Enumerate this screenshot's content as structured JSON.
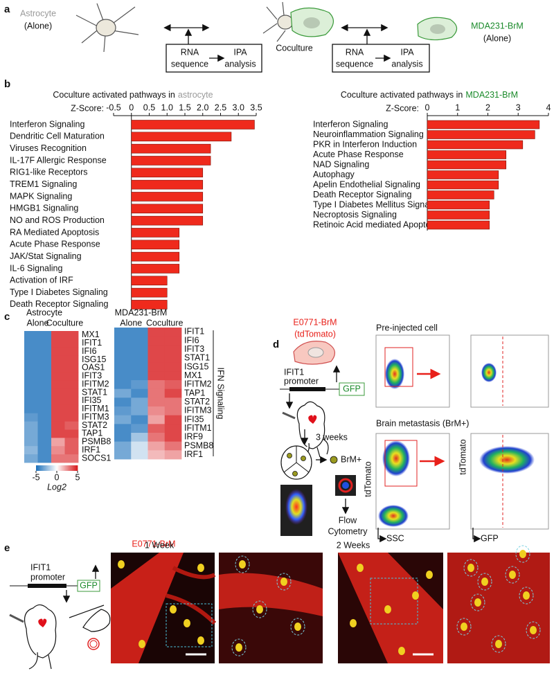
{
  "panel_a": {
    "label": "a",
    "astrocyte": [
      "Astrocyte",
      "(Alone)"
    ],
    "coculture": "Coculture",
    "tumor": [
      "MDA231-BrM",
      "(Alone)"
    ],
    "pipelines": [
      {
        "rna": [
          "RNA",
          "sequence"
        ],
        "ipa": [
          "IPA",
          "analysis"
        ]
      },
      {
        "rna": [
          "RNA",
          "sequence"
        ],
        "ipa": [
          "IPA",
          "analysis"
        ]
      }
    ]
  },
  "panel_b": {
    "label": "b"
  },
  "chart_data": [
    {
      "type": "bar",
      "orientation": "horizontal",
      "title": "Coculture activated pathways in",
      "title_highlight": "astrocyte",
      "title_highlight_color": "#9a9a9a",
      "axis_label": "Z-Score:",
      "categories": [
        "Interferon Signaling",
        "Dendritic Cell Maturation",
        "Viruses Recognition",
        "IL-17F Allergic Response",
        "RIG1-like Receptors",
        "TREM1 Signaling",
        "MAPK Signaling",
        "HMGB1 Signaling",
        "NO and ROS Production",
        "RA Mediated Apoptosis",
        "Acute Phase Response",
        "JAK/Stat Signaling",
        "IL-6 Signaling",
        "Activation of IRF",
        "Type I Diabetes Signaling",
        "Death Receptor Signaling"
      ],
      "values": [
        3.45,
        2.8,
        2.22,
        2.22,
        2.0,
        2.0,
        2.0,
        2.0,
        2.0,
        1.34,
        1.34,
        1.34,
        1.34,
        1.0,
        1.0,
        1.0
      ],
      "color": "#ef2a1c",
      "xlim": [
        -0.5,
        3.5
      ],
      "xticks": [
        -0.5,
        0,
        0.5,
        {
          "value": 1,
          "label": "1.0"
        },
        1.5,
        {
          "value": 2,
          "label": "2.0"
        },
        2.5,
        {
          "value": 3,
          "label": "3.0"
        },
        3.5
      ]
    },
    {
      "type": "bar",
      "orientation": "horizontal",
      "title": "Coculture activated pathways in",
      "title_highlight": "MDA231-BrM",
      "title_highlight_color": "#1a8a2a",
      "axis_label": "Z-Score:",
      "categories": [
        "Interferon Signaling",
        "Neuroinflammation Signaling",
        "PKR in Interferon Induction",
        "Acute Phase Response",
        "NAD Signaling",
        "Autophagy",
        "Apelin Endothelial Signaling",
        "Death Receptor Signaling",
        "Type I Diabetes Mellitus Signaling",
        "Necroptosis Signaling",
        "Retinoic Acid mediated Apoptosis"
      ],
      "values": [
        3.7,
        3.55,
        3.15,
        2.6,
        2.6,
        2.35,
        2.35,
        2.2,
        2.05,
        2.05,
        2.05
      ],
      "color": "#ef2a1c",
      "xlim": [
        0,
        4
      ],
      "xticks": [
        0,
        1,
        2,
        3,
        4
      ]
    },
    {
      "type": "heatmap",
      "title": "Astrocyte",
      "title_color": "#9a9a9a",
      "groups": [
        "Alone",
        "Coculture"
      ],
      "rows": [
        "MX1",
        "IFIT1",
        "IFI6",
        "ISG15",
        "OAS1",
        "IFIT3",
        "IFITM2",
        "STAT1",
        "IFI35",
        "IFITM1",
        "IFITM3",
        "STAT2",
        "TAP1",
        "PSMB8",
        "IRF1",
        "SOCS1"
      ],
      "values": [
        [
          -4,
          -4,
          4,
          4
        ],
        [
          -4,
          -4,
          4,
          4
        ],
        [
          -4,
          -4,
          4,
          4
        ],
        [
          -4,
          -4,
          4,
          4
        ],
        [
          -4,
          -4,
          4,
          4
        ],
        [
          -4,
          -4,
          4,
          4
        ],
        [
          -4,
          -4,
          4,
          4
        ],
        [
          -4,
          -4,
          4,
          4
        ],
        [
          -4,
          -4,
          4,
          4
        ],
        [
          -4,
          -4,
          4,
          4
        ],
        [
          -3.5,
          -4,
          4,
          4
        ],
        [
          -3,
          -4,
          4,
          3.5
        ],
        [
          -3,
          -4,
          4,
          4
        ],
        [
          -3,
          -4,
          2,
          3.5
        ],
        [
          -2.5,
          -4,
          2.5,
          3.5
        ],
        [
          -3,
          -4,
          3,
          3
        ]
      ],
      "zlim": [
        -5,
        5
      ],
      "colors": [
        "#1a6fba",
        "#ffffff",
        "#d7191c"
      ],
      "colorbar_ticks": [
        -5,
        0,
        5
      ],
      "colorbar_label": "Log2"
    },
    {
      "type": "heatmap",
      "title": "MDA231-BrM",
      "title_color": "#1a8a2a",
      "groups": [
        "Alone",
        "Coculture"
      ],
      "rows": [
        "IFIT1",
        "IFI6",
        "IFIT3",
        "STAT1",
        "ISG15",
        "MX1",
        "IFITM2",
        "TAP1",
        "STAT2",
        "IFITM3",
        "IFI35",
        "IFITM1",
        "IRF9",
        "PSMB8",
        "IRF1"
      ],
      "values": [
        [
          -4,
          -4,
          4,
          4
        ],
        [
          -4,
          -4,
          4,
          4
        ],
        [
          -4,
          -4,
          4,
          4
        ],
        [
          -4,
          -4,
          4,
          4
        ],
        [
          -4,
          -4,
          4,
          4
        ],
        [
          -4,
          -4,
          4,
          4
        ],
        [
          -4,
          -3.5,
          3,
          3.5
        ],
        [
          -3,
          -4,
          3,
          4
        ],
        [
          -4,
          -3,
          3,
          3
        ],
        [
          -3.5,
          -3,
          2.5,
          3
        ],
        [
          -3,
          -4,
          2,
          4
        ],
        [
          -4,
          -3.5,
          3.5,
          4
        ],
        [
          -4,
          -2,
          3,
          4
        ],
        [
          -3,
          -1,
          2,
          3
        ],
        [
          -3,
          -1,
          1.5,
          2
        ]
      ],
      "zlim": [
        -5,
        5
      ],
      "colors": [
        "#1a6fba",
        "#ffffff",
        "#d7191c"
      ],
      "row_group_label": "IFN Signaling"
    }
  ],
  "panel_c": {
    "label": "c"
  },
  "panel_d": {
    "label": "d",
    "cell": [
      "E0771-BrM",
      "(tdTomato)"
    ],
    "promoter": [
      "IFIT1",
      "promoter"
    ],
    "reporter": "GFP",
    "duration": "3 weeks",
    "positive": "BrM+",
    "method": [
      "Flow",
      "Cytometry"
    ],
    "plot_titles": [
      "Pre-injected cell",
      "Brain metastasis (BrM+)"
    ],
    "axes": {
      "y": "tdTomato",
      "x_left": "SSC",
      "x_right": "GFP"
    }
  },
  "panel_e": {
    "label": "e",
    "cell": "E0771-BrM",
    "promoter": [
      "IFIT1",
      "promoter"
    ],
    "reporter": "GFP",
    "timepoints": [
      "1 Week",
      "2 Weeks"
    ]
  }
}
